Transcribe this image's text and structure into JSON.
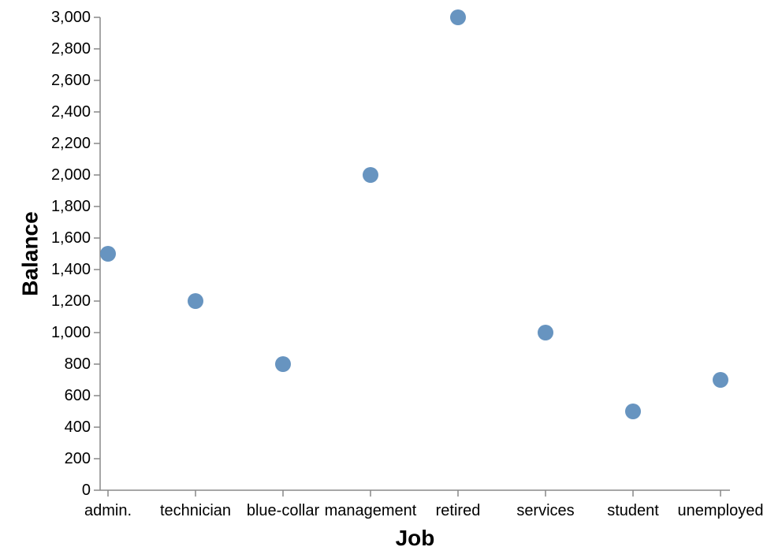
{
  "chart_data": {
    "type": "scatter",
    "xlabel": "Job",
    "ylabel": "Balance",
    "categories": [
      "admin.",
      "technician",
      "blue-collar",
      "management",
      "retired",
      "services",
      "student",
      "unemployed"
    ],
    "values": [
      1500,
      1200,
      800,
      2000,
      3000,
      1000,
      500,
      700
    ],
    "ylim": [
      0,
      3000
    ],
    "yticks": [
      0,
      200,
      400,
      600,
      800,
      1000,
      1200,
      1400,
      1600,
      1800,
      2000,
      2200,
      2400,
      2600,
      2800,
      3000
    ],
    "ytick_labels": [
      "0",
      "200",
      "400",
      "600",
      "800",
      "1,000",
      "1,200",
      "1,400",
      "1,600",
      "1,800",
      "2,000",
      "2,200",
      "2,400",
      "2,600",
      "2,800",
      "3,000"
    ],
    "grid": false,
    "point_color": "#6794c0"
  }
}
